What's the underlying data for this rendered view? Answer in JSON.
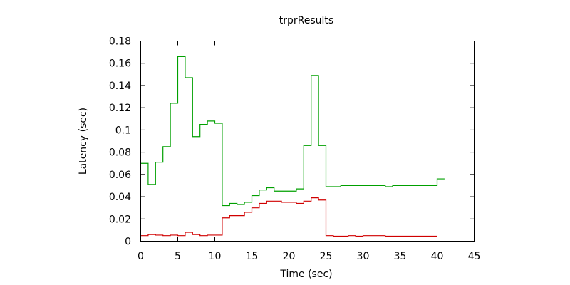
{
  "chart_data": {
    "type": "line",
    "title": "trprResults",
    "xlabel": "Time (sec)",
    "ylabel": "Latency (sec)",
    "xlim": [
      0,
      45
    ],
    "ylim": [
      0,
      0.18
    ],
    "xticks": [
      0,
      5,
      10,
      15,
      20,
      25,
      30,
      35,
      40,
      45
    ],
    "yticks": [
      0,
      0.02,
      0.04,
      0.06,
      0.08,
      0.1,
      0.12,
      0.14,
      0.16,
      0.18
    ],
    "xtick_labels": [
      "0",
      "5",
      "10",
      "15",
      "20",
      "25",
      "30",
      "35",
      "40",
      "45"
    ],
    "ytick_labels": [
      "0",
      "0.02",
      "0.04",
      "0.06",
      "0.08",
      "0.1",
      "0.12",
      "0.14",
      "0.16",
      "0.18"
    ],
    "grid": false,
    "legend": false,
    "step": "post",
    "series": [
      {
        "color": "#00a000",
        "x": [
          0,
          1,
          2,
          3,
          4,
          5,
          6,
          7,
          8,
          9,
          10,
          11,
          12,
          13,
          14,
          15,
          16,
          17,
          18,
          19,
          20,
          21,
          22,
          23,
          24,
          25,
          26,
          27,
          28,
          29,
          30,
          31,
          32,
          33,
          34,
          35,
          36,
          37,
          38,
          39,
          40,
          41
        ],
        "y": [
          0.07,
          0.051,
          0.071,
          0.085,
          0.124,
          0.166,
          0.147,
          0.094,
          0.105,
          0.108,
          0.106,
          0.032,
          0.034,
          0.033,
          0.035,
          0.041,
          0.046,
          0.048,
          0.045,
          0.045,
          0.045,
          0.047,
          0.086,
          0.149,
          0.086,
          0.049,
          0.049,
          0.05,
          0.05,
          0.05,
          0.05,
          0.05,
          0.05,
          0.049,
          0.05,
          0.05,
          0.05,
          0.05,
          0.05,
          0.05,
          0.056,
          0.056
        ]
      },
      {
        "color": "#d00000",
        "x": [
          0,
          1,
          2,
          3,
          4,
          5,
          6,
          7,
          8,
          9,
          10,
          11,
          12,
          13,
          14,
          15,
          16,
          17,
          18,
          19,
          20,
          21,
          22,
          23,
          24,
          25,
          26,
          27,
          28,
          29,
          30,
          31,
          32,
          33,
          34,
          35,
          36,
          37,
          38,
          39,
          40
        ],
        "y": [
          0.005,
          0.006,
          0.0055,
          0.005,
          0.0055,
          0.005,
          0.008,
          0.006,
          0.005,
          0.0055,
          0.0055,
          0.021,
          0.023,
          0.023,
          0.026,
          0.03,
          0.034,
          0.036,
          0.036,
          0.035,
          0.035,
          0.034,
          0.036,
          0.039,
          0.037,
          0.005,
          0.0045,
          0.0045,
          0.005,
          0.0045,
          0.005,
          0.005,
          0.005,
          0.0045,
          0.0045,
          0.0045,
          0.0045,
          0.0045,
          0.0045,
          0.0045,
          0.0045
        ]
      }
    ]
  }
}
